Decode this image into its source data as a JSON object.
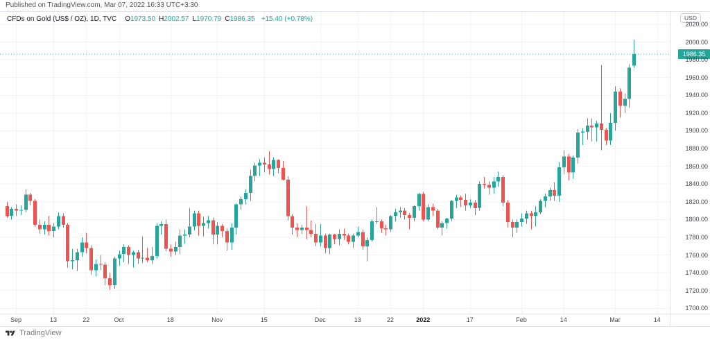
{
  "header": {
    "published": "Published on TradingView.com, Mar 07, 2022 16:33 UTC+3:30"
  },
  "legend": {
    "symbol": "CFDs on Gold (US$ / OZ), 1D, TVC",
    "ohlc": [
      {
        "label": "O",
        "value": "1973.50"
      },
      {
        "label": "H",
        "value": "2002.57"
      },
      {
        "label": "L",
        "value": "1970.79"
      },
      {
        "label": "C",
        "value": "1986.35"
      }
    ],
    "change": "+15.40 (+0.78%)"
  },
  "price_axis": {
    "currency": "USD",
    "ticks": [
      "2020.00",
      "2000.00",
      "1980.00",
      "1960.00",
      "1940.00",
      "1920.00",
      "1900.00",
      "1880.00",
      "1860.00",
      "1840.00",
      "1820.00",
      "1800.00",
      "1780.00",
      "1760.00",
      "1740.00",
      "1720.00",
      "1700.00"
    ],
    "last_price": "1986.35"
  },
  "time_axis": {
    "ticks": [
      {
        "label": "Sep",
        "i": 2,
        "bold": false
      },
      {
        "label": "13",
        "i": 10,
        "bold": false
      },
      {
        "label": "22",
        "i": 17,
        "bold": false
      },
      {
        "label": "Oct",
        "i": 24,
        "bold": false
      },
      {
        "label": "18",
        "i": 35,
        "bold": false
      },
      {
        "label": "Nov",
        "i": 45,
        "bold": false
      },
      {
        "label": "15",
        "i": 55,
        "bold": false
      },
      {
        "label": "Dec",
        "i": 67,
        "bold": false
      },
      {
        "label": "13",
        "i": 75,
        "bold": false
      },
      {
        "label": "22",
        "i": 82,
        "bold": false
      },
      {
        "label": "2022",
        "i": 89,
        "bold": true
      },
      {
        "label": "17",
        "i": 99,
        "bold": false
      },
      {
        "label": "Feb",
        "i": 110,
        "bold": false
      },
      {
        "label": "14",
        "i": 119,
        "bold": false
      },
      {
        "label": "Mar",
        "i": 130,
        "bold": false
      },
      {
        "label": "14",
        "i": 139,
        "bold": false
      }
    ]
  },
  "footer": {
    "brand": "TradingView"
  },
  "colors": {
    "up": "#26a69a",
    "down": "#ef5350",
    "grid": "#f0f3fa",
    "border": "#e0e3eb",
    "axis_text": "#42464e",
    "dark_text": "#131722",
    "muted_text": "#787b86",
    "price_line": "#26a69a",
    "tag_bg": "#26a69a",
    "tag_text": "#ffffff",
    "bg": "#ffffff"
  },
  "chart_data": {
    "type": "candlestick",
    "title": "CFDs on Gold (US$ / OZ), 1D, TVC",
    "ylabel": "USD",
    "ylim": [
      1694,
      2034
    ],
    "y_ticks": [
      2020,
      2000,
      1980,
      1960,
      1940,
      1920,
      1900,
      1880,
      1860,
      1840,
      1820,
      1800,
      1780,
      1760,
      1740,
      1720,
      1700
    ],
    "last_price": 1986.35,
    "legend_position": "top-left",
    "grid": true,
    "columns": [
      "date",
      "open",
      "high",
      "low",
      "close"
    ],
    "candles": [
      [
        "Aug 30",
        1815,
        1820,
        1802,
        1804
      ],
      [
        "Aug 31",
        1804,
        1814,
        1800,
        1812
      ],
      [
        "Sep 1",
        1812,
        1817,
        1804,
        1810
      ],
      [
        "Sep 2",
        1810,
        1816,
        1805,
        1811
      ],
      [
        "Sep 3",
        1811,
        1834,
        1808,
        1828
      ],
      [
        "Sep 6",
        1828,
        1830,
        1816,
        1821
      ],
      [
        "Sep 7",
        1821,
        1823,
        1792,
        1794
      ],
      [
        "Sep 8",
        1794,
        1800,
        1784,
        1789
      ],
      [
        "Sep 9",
        1789,
        1798,
        1783,
        1794
      ],
      [
        "Sep 10",
        1794,
        1804,
        1782,
        1787
      ],
      [
        "Sep 13",
        1787,
        1796,
        1780,
        1792
      ],
      [
        "Sep 14",
        1792,
        1808,
        1789,
        1804
      ],
      [
        "Sep 15",
        1804,
        1807,
        1791,
        1794
      ],
      [
        "Sep 16",
        1794,
        1796,
        1746,
        1753
      ],
      [
        "Sep 17",
        1753,
        1767,
        1744,
        1754
      ],
      [
        "Sep 20",
        1754,
        1767,
        1742,
        1763
      ],
      [
        "Sep 21",
        1763,
        1780,
        1758,
        1774
      ],
      [
        "Sep 22",
        1774,
        1785,
        1762,
        1768
      ],
      [
        "Sep 23",
        1768,
        1771,
        1738,
        1743
      ],
      [
        "Sep 24",
        1743,
        1755,
        1736,
        1750
      ],
      [
        "Sep 27",
        1750,
        1760,
        1743,
        1749
      ],
      [
        "Sep 28",
        1749,
        1752,
        1726,
        1734
      ],
      [
        "Sep 29",
        1734,
        1740,
        1721,
        1726
      ],
      [
        "Sep 30",
        1726,
        1758,
        1722,
        1756
      ],
      [
        "Oct 1",
        1756,
        1765,
        1748,
        1761
      ],
      [
        "Oct 4",
        1761,
        1772,
        1752,
        1769
      ],
      [
        "Oct 5",
        1769,
        1771,
        1750,
        1760
      ],
      [
        "Oct 6",
        1760,
        1765,
        1746,
        1763
      ],
      [
        "Oct 7",
        1763,
        1766,
        1750,
        1756
      ],
      [
        "Oct 8",
        1756,
        1781,
        1751,
        1757
      ],
      [
        "Oct 11",
        1757,
        1768,
        1752,
        1754
      ],
      [
        "Oct 12",
        1754,
        1769,
        1750,
        1759
      ],
      [
        "Oct 13",
        1759,
        1796,
        1756,
        1793
      ],
      [
        "Oct 14",
        1793,
        1798,
        1783,
        1795
      ],
      [
        "Oct 15",
        1795,
        1800,
        1764,
        1767
      ],
      [
        "Oct 18",
        1767,
        1772,
        1758,
        1764
      ],
      [
        "Oct 19",
        1764,
        1775,
        1760,
        1769
      ],
      [
        "Oct 20",
        1769,
        1789,
        1761,
        1782
      ],
      [
        "Oct 21",
        1782,
        1789,
        1773,
        1783
      ],
      [
        "Oct 22",
        1783,
        1813,
        1780,
        1792
      ],
      [
        "Oct 25",
        1792,
        1810,
        1788,
        1807
      ],
      [
        "Oct 26",
        1807,
        1810,
        1782,
        1793
      ],
      [
        "Oct 27",
        1793,
        1803,
        1781,
        1796
      ],
      [
        "Oct 28",
        1796,
        1804,
        1790,
        1799
      ],
      [
        "Oct 29",
        1799,
        1802,
        1772,
        1783
      ],
      [
        "Nov 1",
        1783,
        1797,
        1772,
        1793
      ],
      [
        "Nov 2",
        1793,
        1795,
        1780,
        1787
      ],
      [
        "Nov 3",
        1787,
        1790,
        1765,
        1774
      ],
      [
        "Nov 4",
        1774,
        1796,
        1766,
        1791
      ],
      [
        "Nov 5",
        1791,
        1818,
        1783,
        1817
      ],
      [
        "Nov 8",
        1817,
        1826,
        1811,
        1823
      ],
      [
        "Nov 9",
        1823,
        1834,
        1817,
        1830
      ],
      [
        "Nov 10",
        1830,
        1856,
        1821,
        1849
      ],
      [
        "Nov 11",
        1849,
        1864,
        1843,
        1861
      ],
      [
        "Nov 12",
        1861,
        1868,
        1849,
        1864
      ],
      [
        "Nov 15",
        1864,
        1870,
        1853,
        1862
      ],
      [
        "Nov 16",
        1862,
        1877,
        1851,
        1857
      ],
      [
        "Nov 17",
        1857,
        1870,
        1849,
        1867
      ],
      [
        "Nov 18",
        1867,
        1868,
        1852,
        1858
      ],
      [
        "Nov 19",
        1858,
        1866,
        1844,
        1845
      ],
      [
        "Nov 22",
        1845,
        1849,
        1799,
        1804
      ],
      [
        "Nov 23",
        1804,
        1806,
        1783,
        1791
      ],
      [
        "Nov 24",
        1791,
        1796,
        1780,
        1788
      ],
      [
        "Nov 25",
        1788,
        1794,
        1784,
        1791
      ],
      [
        "Nov 26",
        1791,
        1815,
        1778,
        1788
      ],
      [
        "Nov 29",
        1788,
        1799,
        1780,
        1784
      ],
      [
        "Nov 30",
        1784,
        1795,
        1770,
        1774
      ],
      [
        "Dec 1",
        1774,
        1795,
        1770,
        1782
      ],
      [
        "Dec 2",
        1782,
        1784,
        1762,
        1768
      ],
      [
        "Dec 3",
        1768,
        1784,
        1761,
        1783
      ],
      [
        "Dec 6",
        1783,
        1784,
        1772,
        1778
      ],
      [
        "Dec 7",
        1778,
        1789,
        1771,
        1784
      ],
      [
        "Dec 8",
        1784,
        1790,
        1777,
        1782
      ],
      [
        "Dec 9",
        1782,
        1784,
        1772,
        1775
      ],
      [
        "Dec 10",
        1775,
        1784,
        1768,
        1782
      ],
      [
        "Dec 13",
        1782,
        1792,
        1780,
        1786
      ],
      [
        "Dec 14",
        1786,
        1789,
        1766,
        1770
      ],
      [
        "Dec 15",
        1770,
        1780,
        1753,
        1777
      ],
      [
        "Dec 16",
        1777,
        1800,
        1775,
        1798
      ],
      [
        "Dec 17",
        1798,
        1814,
        1795,
        1798
      ],
      [
        "Dec 20",
        1798,
        1800,
        1785,
        1790
      ],
      [
        "Dec 21",
        1790,
        1794,
        1782,
        1789
      ],
      [
        "Dec 22",
        1789,
        1805,
        1786,
        1804
      ],
      [
        "Dec 23",
        1804,
        1812,
        1798,
        1808
      ],
      [
        "Dec 27",
        1808,
        1814,
        1802,
        1810
      ],
      [
        "Dec 28",
        1810,
        1813,
        1800,
        1805
      ],
      [
        "Dec 29",
        1805,
        1807,
        1789,
        1802
      ],
      [
        "Dec 30",
        1802,
        1816,
        1798,
        1815
      ],
      [
        "Dec 31",
        1815,
        1830,
        1810,
        1829
      ],
      [
        "Jan 3",
        1829,
        1831,
        1798,
        1800
      ],
      [
        "Jan 4",
        1800,
        1817,
        1798,
        1814
      ],
      [
        "Jan 5",
        1814,
        1818,
        1804,
        1810
      ],
      [
        "Jan 6",
        1810,
        1812,
        1789,
        1791
      ],
      [
        "Jan 7",
        1791,
        1798,
        1782,
        1796
      ],
      [
        "Jan 10",
        1796,
        1802,
        1790,
        1801
      ],
      [
        "Jan 11",
        1801,
        1822,
        1798,
        1821
      ],
      [
        "Jan 12",
        1821,
        1828,
        1813,
        1825
      ],
      [
        "Jan 13",
        1825,
        1827,
        1814,
        1822
      ],
      [
        "Jan 14",
        1822,
        1829,
        1810,
        1816
      ],
      [
        "Jan 17",
        1816,
        1823,
        1813,
        1819
      ],
      [
        "Jan 18",
        1819,
        1822,
        1805,
        1813
      ],
      [
        "Jan 19",
        1813,
        1843,
        1810,
        1840
      ],
      [
        "Jan 20",
        1840,
        1848,
        1835,
        1839
      ],
      [
        "Jan 21",
        1839,
        1843,
        1828,
        1836
      ],
      [
        "Jan 24",
        1836,
        1848,
        1829,
        1843
      ],
      [
        "Jan 25",
        1843,
        1854,
        1837,
        1848
      ],
      [
        "Jan 26",
        1848,
        1850,
        1815,
        1819
      ],
      [
        "Jan 27",
        1819,
        1822,
        1791,
        1797
      ],
      [
        "Jan 28",
        1797,
        1800,
        1780,
        1791
      ],
      [
        "Jan 31",
        1791,
        1800,
        1785,
        1797
      ],
      [
        "Feb 1",
        1797,
        1807,
        1792,
        1801
      ],
      [
        "Feb 2",
        1801,
        1810,
        1795,
        1807
      ],
      [
        "Feb 3",
        1807,
        1810,
        1789,
        1804
      ],
      [
        "Feb 4",
        1804,
        1815,
        1792,
        1808
      ],
      [
        "Feb 7",
        1808,
        1823,
        1806,
        1821
      ],
      [
        "Feb 8",
        1821,
        1829,
        1814,
        1826
      ],
      [
        "Feb 9",
        1826,
        1836,
        1821,
        1833
      ],
      [
        "Feb 10",
        1833,
        1842,
        1821,
        1827
      ],
      [
        "Feb 11",
        1827,
        1865,
        1820,
        1859
      ],
      [
        "Feb 14",
        1859,
        1878,
        1851,
        1871
      ],
      [
        "Feb 15",
        1871,
        1874,
        1844,
        1853
      ],
      [
        "Feb 16",
        1853,
        1872,
        1846,
        1870
      ],
      [
        "Feb 17",
        1870,
        1902,
        1863,
        1898
      ],
      [
        "Feb 18",
        1898,
        1903,
        1884,
        1899
      ],
      [
        "Feb 21",
        1899,
        1914,
        1890,
        1906
      ],
      [
        "Feb 22",
        1906,
        1914,
        1888,
        1904
      ],
      [
        "Feb 23",
        1904,
        1911,
        1888,
        1908
      ],
      [
        "Feb 24",
        1908,
        1974,
        1878,
        1901
      ],
      [
        "Feb 25",
        1901,
        1903,
        1884,
        1889
      ],
      [
        "Feb 28",
        1889,
        1920,
        1884,
        1909
      ],
      [
        "Mar 1",
        1909,
        1950,
        1900,
        1944
      ],
      [
        "Mar 2",
        1944,
        1948,
        1915,
        1928
      ],
      [
        "Mar 3",
        1928,
        1942,
        1920,
        1936
      ],
      [
        "Mar 4",
        1936,
        1975,
        1926,
        1971
      ],
      [
        "Mar 7",
        1973.5,
        2002.57,
        1970.79,
        1986.35
      ]
    ]
  }
}
